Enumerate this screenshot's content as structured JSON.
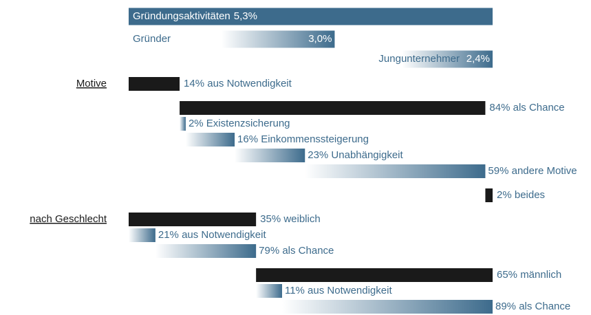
{
  "chart_data": {
    "type": "breakdown",
    "color": "#3d6b8c",
    "solid_color": "#1a1a1a",
    "xlim": [
      0,
      100
    ],
    "totals": [
      {
        "name": "Gründungsaktivitäten",
        "value": 5.3,
        "value_label": "5,3%",
        "style": "solid"
      },
      {
        "name": "Gründer",
        "value": 3.0,
        "value_label": "3,0%",
        "style": "gradient"
      },
      {
        "name": "Jungunternehmer",
        "value": 2.4,
        "value_label": "2,4%",
        "style": "gradient"
      }
    ],
    "sections": [
      {
        "title": "Motive",
        "items": [
          {
            "value": 14,
            "label": "14% aus Notwendigkeit"
          },
          {
            "value": 84,
            "label": "84% als Chance",
            "children": [
              {
                "value": 2,
                "label": "2% Existenzsicherung"
              },
              {
                "value": 16,
                "label": "16% Einkommenssteigerung"
              },
              {
                "value": 23,
                "label": "23% Unabhängigkeit"
              },
              {
                "value": 59,
                "label": "59% andere Motive"
              }
            ]
          },
          {
            "value": 2,
            "label": "2% beides"
          }
        ]
      },
      {
        "title": "nach Geschlecht",
        "items": [
          {
            "value": 35,
            "label": "35% weiblich",
            "children": [
              {
                "value": 21,
                "label": "21% aus Notwendigkeit"
              },
              {
                "value": 79,
                "label": "79% als Chance"
              }
            ]
          },
          {
            "value": 65,
            "label": "65% männlich",
            "children": [
              {
                "value": 11,
                "label": "11% aus Notwendigkeit"
              },
              {
                "value": 89,
                "label": "89% als Chance"
              }
            ]
          }
        ]
      }
    ]
  }
}
